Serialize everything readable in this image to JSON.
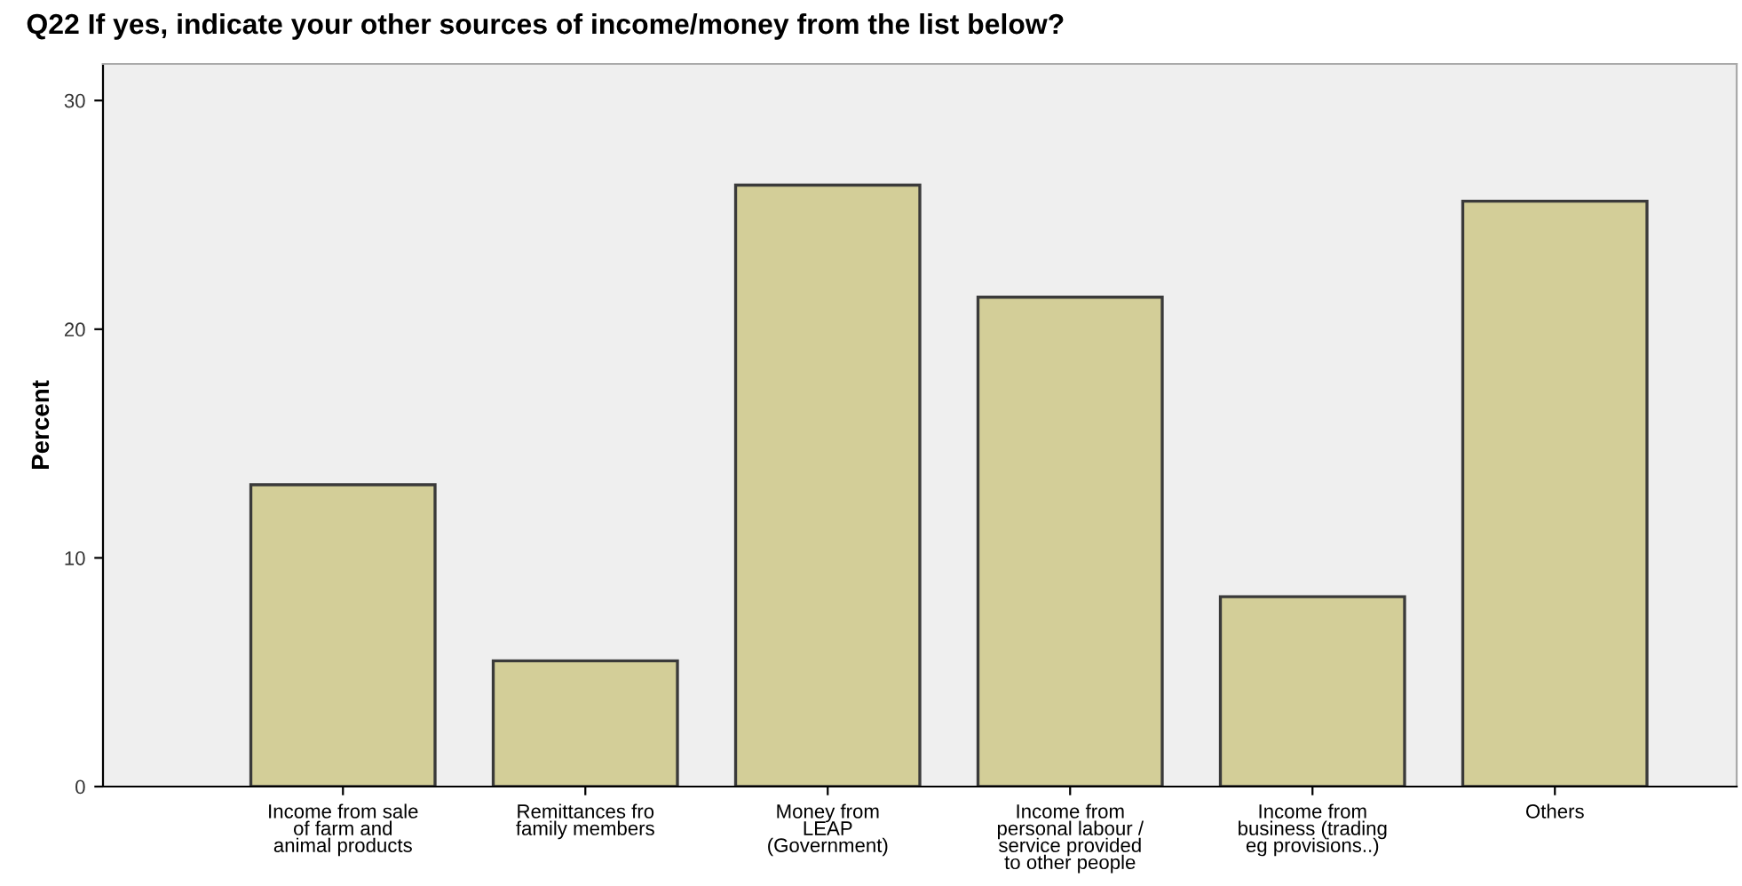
{
  "chart_data": {
    "type": "bar",
    "title": "Q22 If yes, indicate your other sources of income/money from the list below?",
    "ylabel": "Percent",
    "categories": [
      "Income from sale\nof farm and\nanimal products",
      "Remittances fro\nfamily members",
      "Money from\nLEAP\n(Government)",
      "Income from\npersonal labour /\nservice provided\nto other people",
      "Income from\nbusiness (trading\neg provisions..)",
      "Others"
    ],
    "values": [
      13.2,
      5.5,
      26.3,
      21.4,
      8.3,
      25.6
    ],
    "color": "#d3ce98",
    "ylim": [
      0,
      31.6
    ],
    "yticks": [
      0,
      10,
      20,
      30
    ],
    "grid": false
  }
}
